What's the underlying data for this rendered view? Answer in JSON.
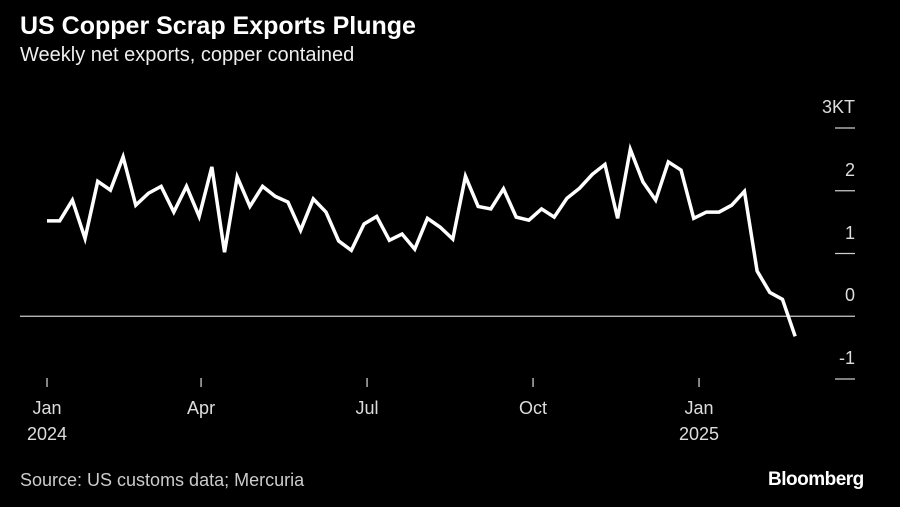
{
  "chart_data": {
    "type": "line",
    "title": "US Copper Scrap Exports Plunge",
    "subtitle": "Weekly net exports, copper contained",
    "source": "Source: US customs data; Mercuria",
    "brand": "Bloomberg",
    "x": [
      0,
      1,
      2,
      3,
      4,
      5,
      6,
      7,
      8,
      9,
      10,
      11,
      12,
      13,
      14,
      15,
      16,
      17,
      18,
      19,
      20,
      21,
      22,
      23,
      24,
      25,
      26,
      27,
      28,
      29,
      30,
      31,
      32,
      33,
      34,
      35,
      36,
      37,
      38,
      39,
      40,
      41,
      42,
      43,
      44,
      45,
      46,
      47,
      48,
      49,
      50,
      51,
      52,
      53,
      54,
      55,
      56,
      57,
      58,
      59
    ],
    "series": [
      {
        "name": "Weekly net exports",
        "color": "#ffffff",
        "values": [
          1.52,
          1.52,
          1.85,
          1.24,
          2.15,
          2.01,
          2.54,
          1.77,
          1.96,
          2.07,
          1.66,
          2.07,
          1.59,
          2.38,
          1.02,
          2.22,
          1.75,
          2.07,
          1.91,
          1.82,
          1.37,
          1.87,
          1.66,
          1.2,
          1.05,
          1.47,
          1.59,
          1.21,
          1.31,
          1.07,
          1.56,
          1.42,
          1.23,
          2.23,
          1.75,
          1.71,
          2.03,
          1.58,
          1.53,
          1.71,
          1.58,
          1.88,
          2.04,
          2.26,
          2.42,
          1.56,
          2.66,
          2.14,
          1.85,
          2.46,
          2.33,
          1.56,
          1.66,
          1.66,
          1.77,
          1.99,
          0.72,
          0.38,
          0.27,
          -0.32
        ]
      }
    ],
    "xlim": [
      -2.13,
      63.72
    ],
    "xticks": [
      {
        "value": 0,
        "label": "Jan 2024"
      },
      {
        "value": 12.15,
        "label": "Apr"
      },
      {
        "value": 25.24,
        "label": "Jul"
      },
      {
        "value": 38.33,
        "label": "Oct"
      },
      {
        "value": 51.42,
        "label": "Jan 2025"
      }
    ],
    "ylim": [
      -1,
      3
    ],
    "yticks": [
      -1,
      0,
      {
        "value": 1,
        "label": "1"
      },
      2,
      {
        "value": 3,
        "label": "3KT"
      }
    ]
  }
}
